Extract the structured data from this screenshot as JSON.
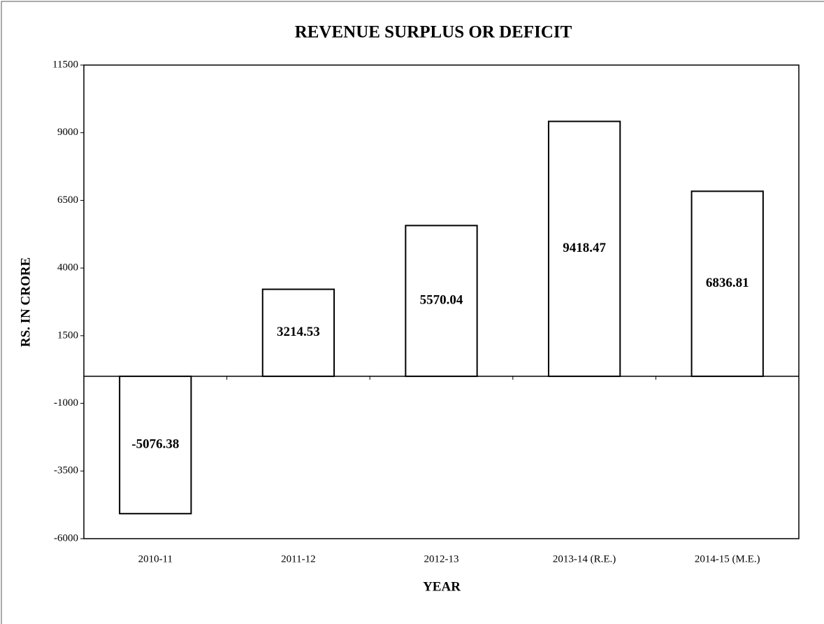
{
  "chart_data": {
    "type": "bar",
    "title": "REVENUE SURPLUS  OR DEFICIT",
    "x_label": "YEAR",
    "y_label": "RS. IN CRORE",
    "categories": [
      "2010-11",
      "2011-12",
      "2012-13",
      "2013-14 (R.E.)",
      "2014-15 (M.E.)"
    ],
    "values": [
      -5076.38,
      3214.53,
      5570.04,
      9418.47,
      6836.81
    ],
    "color": "#ffffff",
    "ylim": [
      -6000,
      11500
    ],
    "yticks": [
      -6000,
      -3500,
      -1000,
      1500,
      4000,
      6500,
      9000,
      11500
    ],
    "grid": false
  }
}
